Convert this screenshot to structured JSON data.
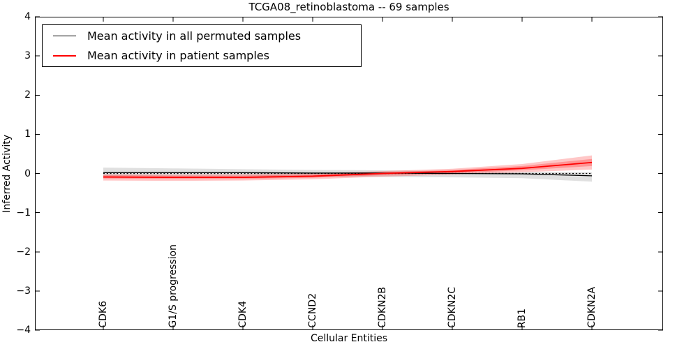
{
  "chart_data": {
    "type": "line",
    "title": "TCGA08_retinoblastoma -- 69 samples",
    "xlabel": "Cellular Entities",
    "ylabel": "Inferred Activity",
    "ylim": [
      -4,
      4
    ],
    "ytick_values": [
      4,
      3,
      2,
      1,
      0,
      -1,
      -2,
      -3,
      -4
    ],
    "ytick_labels": [
      "4",
      "3",
      "2",
      "1",
      "0",
      "−1",
      "−2",
      "−3",
      "−4"
    ],
    "categories": [
      "CDK6",
      "G1/S progression",
      "CDK4",
      "CCND2",
      "CDKN2B",
      "CDKN2C",
      "RB1",
      "CDKN2A"
    ],
    "grid": false,
    "legend_position": "upper left",
    "reference_line": {
      "y": 0,
      "style": "dotted",
      "color": "#000000"
    },
    "series": [
      {
        "name": "Mean activity in all permuted samples",
        "color": "#000000",
        "values": [
          0.02,
          0.02,
          0.02,
          0.01,
          0.01,
          0.0,
          -0.01,
          -0.06
        ],
        "band_hi": [
          0.15,
          0.13,
          0.11,
          0.09,
          0.08,
          0.06,
          0.04,
          0.03
        ],
        "band_lo": [
          -0.06,
          -0.07,
          -0.07,
          -0.08,
          -0.09,
          -0.1,
          -0.12,
          -0.21
        ]
      },
      {
        "name": "Mean activity in patient samples",
        "color": "#ff0000",
        "values": [
          -0.09,
          -0.1,
          -0.1,
          -0.07,
          0.0,
          0.05,
          0.13,
          0.28
        ],
        "band_hi": [
          -0.02,
          -0.03,
          -0.02,
          0.0,
          0.06,
          0.12,
          0.24,
          0.46
        ],
        "band_lo": [
          -0.18,
          -0.19,
          -0.18,
          -0.15,
          -0.08,
          -0.03,
          0.03,
          0.1
        ],
        "band_inner_hi": [
          -0.05,
          -0.06,
          -0.06,
          -0.03,
          0.03,
          0.09,
          0.19,
          0.37
        ],
        "band_inner_lo": [
          -0.13,
          -0.14,
          -0.14,
          -0.11,
          -0.04,
          0.01,
          0.08,
          0.19
        ]
      }
    ]
  }
}
